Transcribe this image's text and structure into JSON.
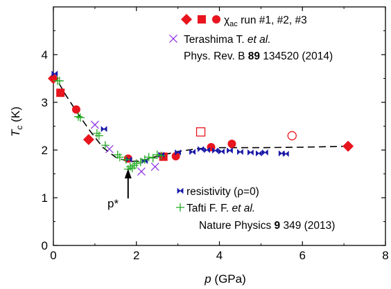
{
  "chart_data": {
    "type": "scatter",
    "xlabel": {
      "italic": "p",
      "rest": " (GPa)"
    },
    "ylabel": {
      "italic": "T",
      "sub": "c",
      "rest": " (K)"
    },
    "xlim": [
      0,
      8
    ],
    "ylim": [
      0,
      5
    ],
    "x_ticks": [
      "0",
      "2",
      "4",
      "6",
      "8"
    ],
    "y_ticks": [
      "0",
      "1",
      "2",
      "3",
      "4"
    ],
    "colors": {
      "red": "#e8141e",
      "purple": "#8a2be2",
      "blue": "#1a1aa8",
      "green": "#22aa22",
      "dash": "#000000"
    },
    "series": [
      {
        "key": "chi_run1",
        "marker": "diamond-filled",
        "color": "red",
        "points": [
          [
            0.0,
            3.5
          ],
          [
            0.85,
            2.22
          ],
          [
            7.1,
            2.08
          ]
        ]
      },
      {
        "key": "chi_run2",
        "marker": "square-filled",
        "color": "red",
        "points": [
          [
            0.17,
            3.2
          ],
          [
            2.65,
            1.86
          ]
        ]
      },
      {
        "key": "chi_run2_open",
        "marker": "square-open",
        "color": "red",
        "points": [
          [
            3.55,
            2.38
          ]
        ]
      },
      {
        "key": "chi_run3",
        "marker": "circle-filled",
        "color": "red",
        "points": [
          [
            0.55,
            2.85
          ],
          [
            1.8,
            1.82
          ],
          [
            2.95,
            1.87
          ],
          [
            3.8,
            2.06
          ],
          [
            4.3,
            2.13
          ]
        ]
      },
      {
        "key": "chi_run3_open",
        "marker": "circle-open",
        "color": "red",
        "points": [
          [
            5.75,
            2.3
          ]
        ]
      },
      {
        "key": "terashima",
        "marker": "x",
        "color": "purple",
        "points": [
          [
            1.0,
            2.53
          ],
          [
            1.35,
            2.02
          ],
          [
            2.12,
            1.55
          ],
          [
            2.45,
            1.65
          ]
        ]
      },
      {
        "key": "resistivity",
        "marker": "bowtie",
        "color": "blue",
        "points": [
          [
            0.03,
            3.6
          ],
          [
            1.22,
            2.44
          ],
          [
            1.82,
            1.8
          ],
          [
            2.2,
            1.77
          ],
          [
            2.6,
            1.9
          ],
          [
            3.0,
            1.95
          ],
          [
            3.35,
            1.96
          ],
          [
            3.55,
            2.02
          ],
          [
            3.7,
            2.0
          ],
          [
            3.9,
            1.99
          ],
          [
            4.05,
            1.97
          ],
          [
            4.25,
            1.99
          ],
          [
            4.5,
            1.96
          ],
          [
            4.75,
            1.95
          ],
          [
            4.95,
            1.93
          ],
          [
            5.1,
            1.95
          ],
          [
            5.5,
            1.93
          ],
          [
            5.6,
            1.92
          ]
        ]
      },
      {
        "key": "tafti",
        "marker": "plus",
        "color": "green",
        "points": [
          [
            0.1,
            3.45
          ],
          [
            0.15,
            3.45
          ],
          [
            0.6,
            2.7
          ],
          [
            0.65,
            2.68
          ],
          [
            1.05,
            2.35
          ],
          [
            1.1,
            2.3
          ],
          [
            1.25,
            2.1
          ],
          [
            1.55,
            1.9
          ],
          [
            1.6,
            1.85
          ],
          [
            1.75,
            1.8
          ],
          [
            1.8,
            1.6
          ],
          [
            1.85,
            1.65
          ],
          [
            1.9,
            1.62
          ],
          [
            1.95,
            1.68
          ],
          [
            2.0,
            1.72
          ],
          [
            2.1,
            1.75
          ],
          [
            2.2,
            1.8
          ],
          [
            2.3,
            1.85
          ],
          [
            2.4,
            1.83
          ],
          [
            2.5,
            1.9
          ],
          [
            2.6,
            1.88
          ]
        ]
      }
    ],
    "guide_line": {
      "style": "dashed",
      "points": [
        [
          0.0,
          3.6
        ],
        [
          0.3,
          3.15
        ],
        [
          0.6,
          2.75
        ],
        [
          0.9,
          2.38
        ],
        [
          1.2,
          2.05
        ],
        [
          1.5,
          1.85
        ],
        [
          1.8,
          1.76
        ],
        [
          2.1,
          1.77
        ],
        [
          2.5,
          1.87
        ],
        [
          3.0,
          1.97
        ],
        [
          3.5,
          2.03
        ],
        [
          4.0,
          2.05
        ],
        [
          5.0,
          2.05
        ],
        [
          6.0,
          2.06
        ],
        [
          7.1,
          2.08
        ]
      ]
    },
    "legend_top": {
      "chi_label": "χ",
      "chi_sub": "ac",
      "chi_rest": " run #1, #2, #3",
      "terashima_line1": "Terashima T. ",
      "terashima_etal": "et al.",
      "terashima_line2_pre": "Phys. Rev. B ",
      "terashima_vol": "89",
      "terashima_line2_post": " 134520 (2014)"
    },
    "legend_bottom": {
      "resistivity": "resistivity (ρ=0)",
      "tafti_line1": "Tafti F. F. ",
      "tafti_etal": "et al.",
      "tafti_line2_pre": "Nature Physics ",
      "tafti_vol": "9",
      "tafti_line2_post": " 349 (2013)"
    },
    "annotation": {
      "label": "p*",
      "x": 1.8
    }
  }
}
